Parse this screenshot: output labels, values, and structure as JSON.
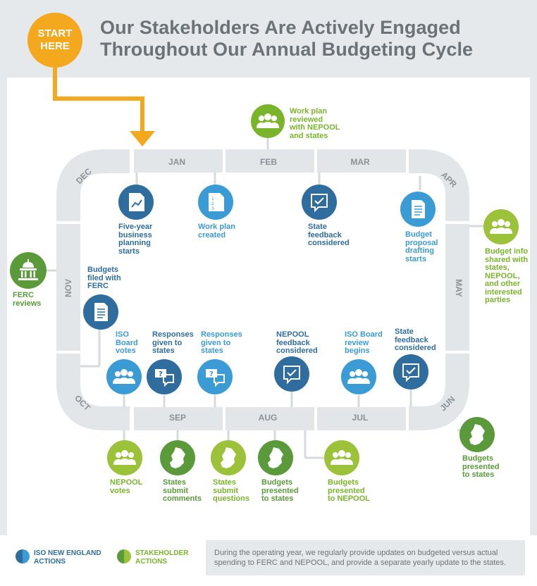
{
  "header": {
    "start_label_1": "START",
    "start_label_2": "HERE",
    "title_line_1": "Our Stakeholders Are Actively Engaged",
    "title_line_2": "Throughout Our Annual Budgeting Cycle"
  },
  "months": {
    "jan": "JAN",
    "feb": "FEB",
    "mar": "MAR",
    "apr": "APR",
    "may": "MAY",
    "jun": "JUN",
    "jul": "JUL",
    "aug": "AUG",
    "sep": "SEP",
    "oct": "OCT",
    "nov": "NOV",
    "dec": "DEC"
  },
  "colors": {
    "iso_dark": "#2f6d9f",
    "iso_light": "#3a9bd5",
    "stake_light": "#9cc23a",
    "stake_dark": "#5a9a3a",
    "track": "#e3e6e8",
    "start": "#f4a81d"
  },
  "steps": {
    "work_plan_reviewed": [
      "Work plan",
      "reviewed",
      "with NEPOOL",
      "and states"
    ],
    "five_year": [
      "Five-year",
      "business",
      "planning",
      "starts"
    ],
    "work_plan_created": [
      "Work plan",
      "created"
    ],
    "state_feedback_mar": [
      "State",
      "feedback",
      "considered"
    ],
    "budget_proposal": [
      "Budget",
      "proposal",
      "drafting",
      "starts"
    ],
    "budget_info_shared": [
      "Budget info",
      "shared with",
      "states,",
      "NEPOOL,",
      "and other",
      "interested",
      "parties"
    ],
    "ferc_reviews": [
      "FERC",
      "reviews"
    ],
    "budgets_filed": [
      "Budgets",
      "filed with",
      "FERC"
    ],
    "iso_board_votes": [
      "ISO",
      "Board",
      "votes"
    ],
    "responses_1": [
      "Responses",
      "given to",
      "states"
    ],
    "responses_2": [
      "Responses",
      "given to",
      "states"
    ],
    "nepool_feedback": [
      "NEPOOL",
      "feedback",
      "considered"
    ],
    "iso_board_review": [
      "ISO Board",
      "review",
      "begins"
    ],
    "state_feedback_jun": [
      "State",
      "feedback",
      "considered"
    ],
    "budgets_presented_states_jun": [
      "Budgets",
      "presented",
      "to states"
    ],
    "nepool_votes": [
      "NEPOOL",
      "votes"
    ],
    "states_submit_comments": [
      "States",
      "submit",
      "comments"
    ],
    "states_submit_questions": [
      "States",
      "submit",
      "questions"
    ],
    "budgets_presented_states_aug": [
      "Budgets",
      "presented",
      "to states"
    ],
    "budgets_presented_nepool": [
      "Budgets",
      "presented",
      "to NEPOOL"
    ]
  },
  "legend": {
    "iso_1": "ISO NEW ENGLAND",
    "iso_2": "ACTIONS",
    "stake_1": "STAKEHOLDER",
    "stake_2": "ACTIONS"
  },
  "footer_note": "During the operating year, we regularly provide updates on budgeted versus actual spending to FERC and NEPOOL, and provide a separate yearly update to the states."
}
